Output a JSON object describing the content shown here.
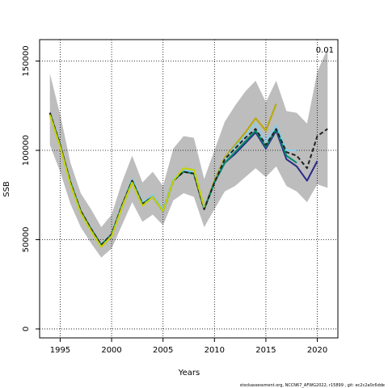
{
  "chart_data": {
    "type": "line",
    "xlabel": "Years",
    "ylabel": "SSB",
    "xlim": [
      1993,
      2022
    ],
    "ylim": [
      -5000,
      162000
    ],
    "x_ticks": [
      1995,
      2000,
      2005,
      2010,
      2015,
      2020
    ],
    "y_ticks": [
      0,
      50000,
      100000,
      150000
    ],
    "grid": "dotted",
    "corner_label": "0.01",
    "footer": "stockassessment.org, NCCN67_AFWG2022, r15899 , git: ec2c2a0c6dde",
    "band": {
      "x": [
        1994,
        1995,
        1996,
        1997,
        1998,
        1999,
        2000,
        2001,
        2002,
        2003,
        2004,
        2005,
        2006,
        2007,
        2008,
        2009,
        2010,
        2011,
        2012,
        2013,
        2014,
        2015,
        2016,
        2017,
        2018,
        2019,
        2020,
        2021
      ],
      "upper": [
        143000,
        120000,
        93000,
        76000,
        67000,
        57000,
        64000,
        82000,
        97000,
        82000,
        88000,
        80000,
        101000,
        108000,
        107000,
        84000,
        100000,
        116000,
        125000,
        133000,
        139000,
        127000,
        139000,
        122000,
        121000,
        115000,
        144000,
        157000
      ],
      "lower": [
        103000,
        88000,
        70000,
        57000,
        48000,
        40000,
        45000,
        58000,
        71000,
        60000,
        64000,
        58000,
        72000,
        76000,
        74000,
        57000,
        67000,
        77000,
        80000,
        85000,
        90000,
        85000,
        91000,
        80000,
        77000,
        71000,
        81000,
        79000
      ]
    },
    "series": [
      {
        "color": "#b8a800",
        "style": "solid",
        "x": [
          1994,
          1995,
          1996,
          1997,
          1998,
          1999,
          2000,
          2001,
          2002,
          2003,
          2004,
          2005,
          2006,
          2007,
          2008,
          2009,
          2010,
          2011,
          2012,
          2013,
          2014,
          2015,
          2016
        ],
        "values": [
          120000,
          102000,
          81000,
          65000,
          55000,
          46000,
          52000,
          68000,
          82000,
          69000,
          74000,
          66000,
          83000,
          90000,
          89000,
          68000,
          83000,
          96000,
          103000,
          110000,
          118000,
          111000,
          126000
        ]
      },
      {
        "color": "#87ceeb",
        "style": "solid",
        "x": [
          1994,
          1995,
          1996,
          1997,
          1998,
          1999,
          2000,
          2001,
          2002,
          2003,
          2004,
          2005,
          2006,
          2007,
          2008,
          2009,
          2010,
          2011,
          2012,
          2013,
          2014,
          2015,
          2016,
          2017,
          2018
        ],
        "values": [
          121000,
          103000,
          82000,
          66000,
          56000,
          47000,
          53000,
          69000,
          84000,
          71000,
          75000,
          67000,
          84000,
          89000,
          88000,
          68000,
          82000,
          95000,
          102000,
          108000,
          115000,
          105000,
          114000,
          100000,
          100000
        ]
      },
      {
        "color": "#2a2a8a",
        "style": "solid",
        "x": [
          1994,
          1995,
          1996,
          1997,
          1998,
          1999,
          2000,
          2001,
          2002,
          2003,
          2004,
          2005,
          2006,
          2007,
          2008,
          2009,
          2010,
          2011,
          2012,
          2013,
          2014,
          2015,
          2016,
          2017,
          2018,
          2019,
          2020
        ],
        "values": [
          121000,
          103000,
          82000,
          66000,
          56000,
          47000,
          53000,
          69000,
          83000,
          70000,
          74000,
          66000,
          83000,
          88000,
          87000,
          67000,
          82000,
          93000,
          98000,
          104000,
          110000,
          101000,
          111000,
          95000,
          91000,
          83000,
          94000
        ]
      },
      {
        "color": "#008b6b",
        "style": "solid",
        "x": [
          1994,
          1995,
          1996,
          1997,
          1998,
          1999,
          2000,
          2001,
          2002,
          2003,
          2004,
          2005,
          2006,
          2007,
          2008,
          2009,
          2010,
          2011,
          2012,
          2013,
          2014,
          2015,
          2016,
          2017,
          2018
        ],
        "values": [
          121000,
          103000,
          82000,
          66000,
          56000,
          47000,
          53000,
          69000,
          83000,
          70000,
          74000,
          66000,
          83000,
          88000,
          87000,
          67000,
          82000,
          93000,
          99000,
          105000,
          111000,
          102000,
          112000,
          97000,
          93000
        ]
      },
      {
        "color": "#222222",
        "style": "dashed",
        "x": [
          1994,
          1995,
          1996,
          1997,
          1998,
          1999,
          2000,
          2001,
          2002,
          2003,
          2004,
          2005,
          2006,
          2007,
          2008,
          2009,
          2010,
          2011,
          2012,
          2013,
          2014,
          2015,
          2016,
          2017,
          2018,
          2019,
          2020,
          2021
        ],
        "values": [
          121000,
          103000,
          82000,
          66000,
          56000,
          47000,
          53000,
          69000,
          83000,
          70000,
          74000,
          66000,
          83000,
          88000,
          87000,
          67000,
          82000,
          95000,
          101000,
          107000,
          112000,
          103000,
          112000,
          99000,
          97000,
          90000,
          108000,
          112000
        ]
      },
      {
        "color": "#c8d400",
        "style": "solid",
        "x": [
          1994,
          1995,
          1996,
          1997,
          1998,
          1999,
          2000,
          2001,
          2002,
          2003,
          2004,
          2005,
          2006,
          2007,
          2008,
          2009
        ],
        "values": [
          120000,
          102000,
          81000,
          65000,
          55000,
          46000,
          52000,
          68000,
          82000,
          69000,
          74000,
          66000,
          83000,
          90000,
          89000,
          68000
        ]
      }
    ]
  }
}
